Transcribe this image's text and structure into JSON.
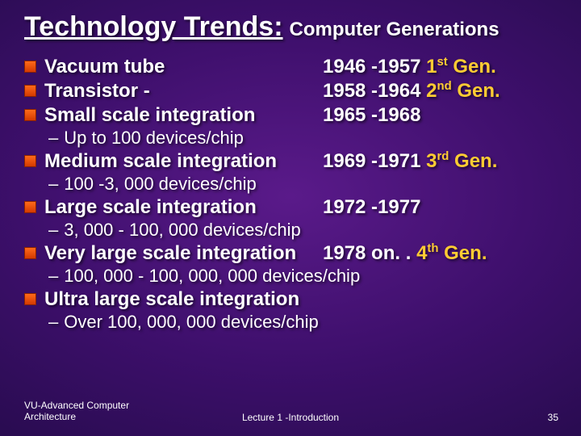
{
  "title": {
    "main": "Technology Trends:",
    "sub": "Computer Generations"
  },
  "items": [
    {
      "topic": "Vacuum tube",
      "dates": "1946 -1957",
      "gen_ord": "1",
      "gen_suf": "st",
      "gen_tail": " Gen.",
      "sub": ""
    },
    {
      "topic": "Transistor -",
      "dates": "1958 -1964",
      "gen_ord": "2",
      "gen_suf": "nd",
      "gen_tail": "  Gen.",
      "sub": ""
    },
    {
      "topic": "Small scale integration",
      "dates": "1965 -1968",
      "gen_ord": "",
      "gen_suf": "",
      "gen_tail": "",
      "sub": "Up to 100 devices/chip"
    },
    {
      "topic": "Medium scale integration",
      "dates": "1969 -1971",
      "gen_ord": "3",
      "gen_suf": "rd",
      "gen_tail": " Gen.",
      "sub": "100 -3, 000 devices/chip"
    },
    {
      "topic": "Large scale integration",
      "dates": "1972 -1977",
      "gen_ord": "",
      "gen_suf": "",
      "gen_tail": "",
      "sub": "3, 000 - 100, 000 devices/chip"
    },
    {
      "topic": "Very large scale integration",
      "dates": "1978 on. . ",
      "gen_ord": "4",
      "gen_suf": "th",
      "gen_tail": " Gen.",
      "sub": "100, 000 - 100, 000, 000 devices/chip"
    },
    {
      "topic": "Ultra large scale integration",
      "dates": "",
      "gen_ord": "",
      "gen_suf": "",
      "gen_tail": "",
      "sub": "Over 100, 000, 000 devices/chip"
    }
  ],
  "footer": {
    "left1": "VU-Advanced Computer",
    "left2": "Architecture",
    "center": "Lecture 1 -Introduction",
    "page": "35"
  },
  "colors": {
    "gen": "#ffcc33",
    "bullet": "#e64a00",
    "text": "#ffffff"
  }
}
